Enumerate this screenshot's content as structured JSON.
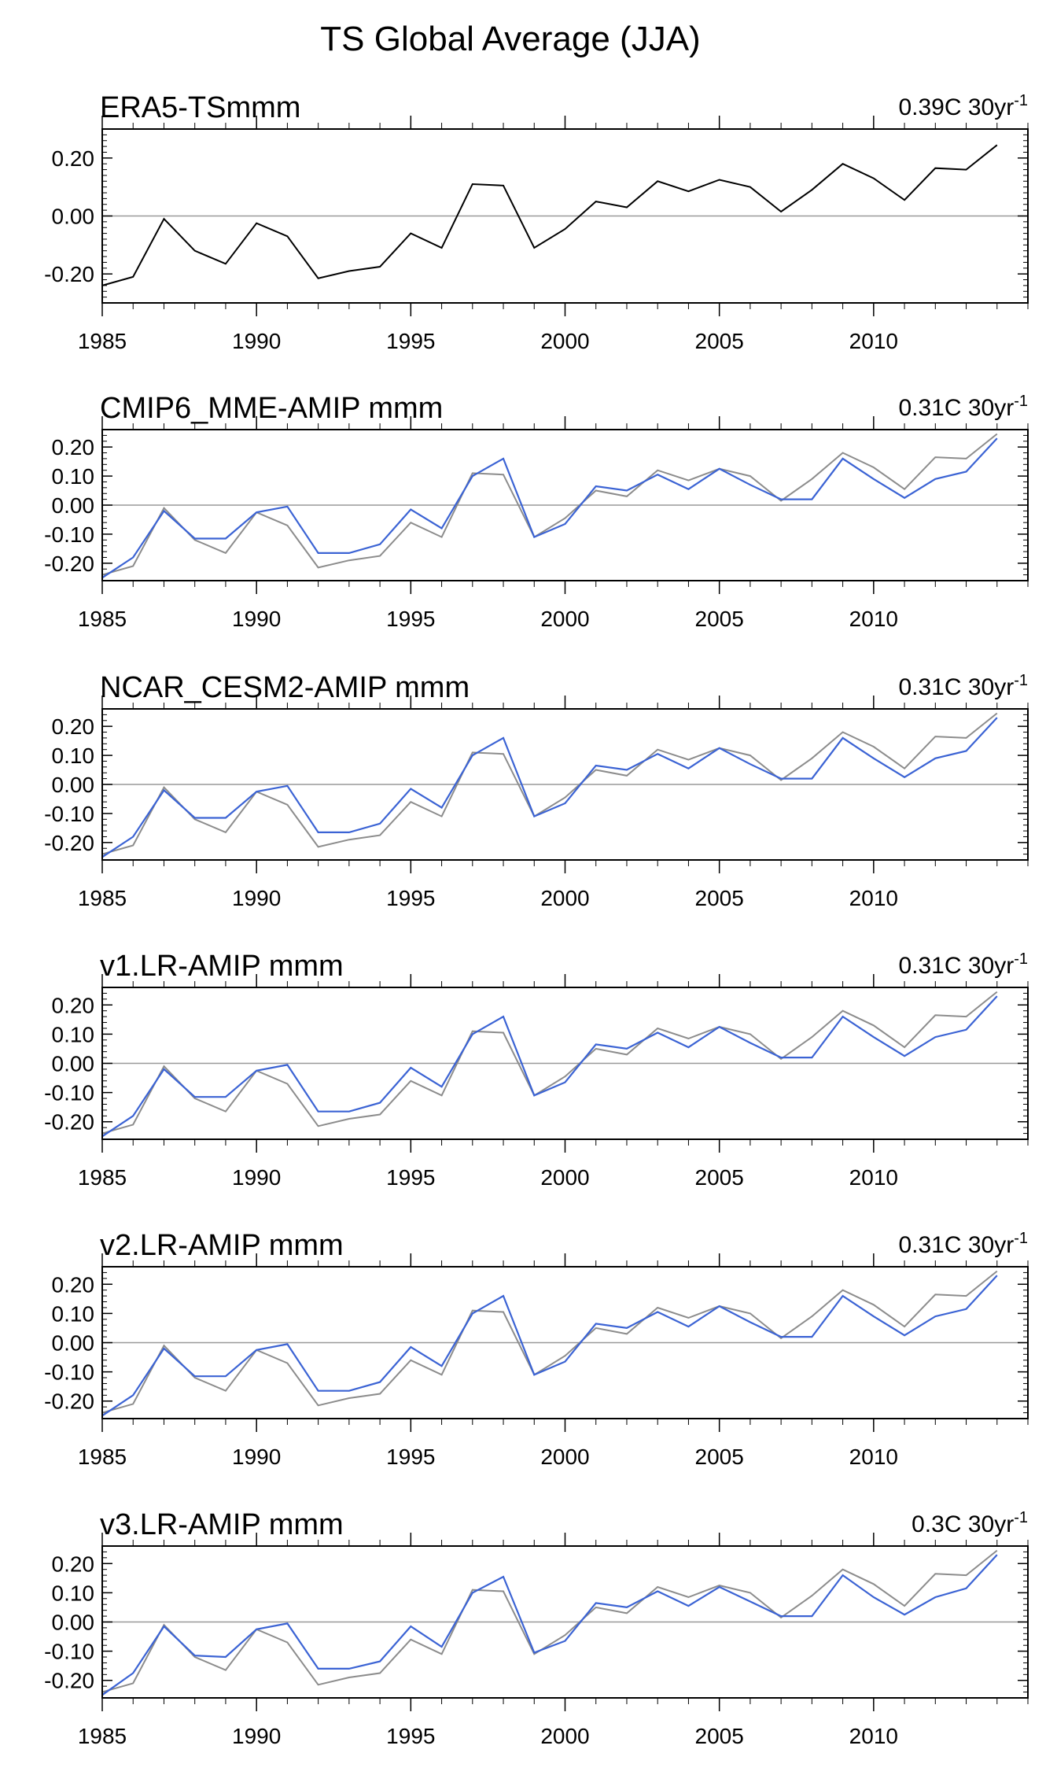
{
  "figure_title": "TS Global Average (JJA)",
  "colors": {
    "observation": "#000000",
    "reference": "#8c8c8c",
    "model": "#3b63d4",
    "zero_line": "#999999",
    "axis": "#000000"
  },
  "chart_data": [
    {
      "type": "line",
      "title": "ERA5-TSmmm",
      "trend_label": "0.39C 30yr",
      "trend_superscript": "-1",
      "x": [
        1985,
        1986,
        1987,
        1988,
        1989,
        1990,
        1991,
        1992,
        1993,
        1994,
        1995,
        1996,
        1997,
        1998,
        1999,
        2000,
        2001,
        2002,
        2003,
        2004,
        2005,
        2006,
        2007,
        2008,
        2009,
        2010,
        2011,
        2012,
        2013,
        2014
      ],
      "xlim": [
        1985,
        2015
      ],
      "xticks": [
        1985,
        1990,
        1995,
        2000,
        2005,
        2010
      ],
      "xtick_labels": [
        "1985",
        "1990",
        "1995",
        "2000",
        "2005",
        "2010"
      ],
      "ylim": [
        -0.3,
        0.3
      ],
      "yticks": [
        -0.2,
        0.0,
        0.2
      ],
      "ytick_labels": [
        "-0.20",
        "0.00",
        "0.20"
      ],
      "series": [
        {
          "name": "ERA5",
          "style": "observation",
          "values": [
            -0.24,
            -0.21,
            -0.01,
            -0.12,
            -0.165,
            -0.025,
            -0.07,
            -0.215,
            -0.19,
            -0.175,
            -0.06,
            -0.11,
            0.11,
            0.105,
            -0.11,
            -0.045,
            0.05,
            0.03,
            0.12,
            0.085,
            0.125,
            0.1,
            0.015,
            0.09,
            0.18,
            0.13,
            0.055,
            0.165,
            0.16,
            0.245
          ]
        }
      ]
    },
    {
      "type": "line",
      "title": "CMIP6_MME-AMIP  mmm",
      "trend_label": "0.31C 30yr",
      "trend_superscript": "-1",
      "x": [
        1985,
        1986,
        1987,
        1988,
        1989,
        1990,
        1991,
        1992,
        1993,
        1994,
        1995,
        1996,
        1997,
        1998,
        1999,
        2000,
        2001,
        2002,
        2003,
        2004,
        2005,
        2006,
        2007,
        2008,
        2009,
        2010,
        2011,
        2012,
        2013,
        2014
      ],
      "xlim": [
        1985,
        2015
      ],
      "xticks": [
        1985,
        1990,
        1995,
        2000,
        2005,
        2010
      ],
      "xtick_labels": [
        "1985",
        "1990",
        "1995",
        "2000",
        "2005",
        "2010"
      ],
      "ylim": [
        -0.26,
        0.26
      ],
      "yticks": [
        -0.2,
        -0.1,
        0.0,
        0.1,
        0.2
      ],
      "ytick_labels": [
        "-0.20",
        "-0.10",
        "0.00",
        "0.10",
        "0.20"
      ],
      "series": [
        {
          "name": "ERA5",
          "style": "reference",
          "values": [
            -0.24,
            -0.21,
            -0.01,
            -0.12,
            -0.165,
            -0.025,
            -0.07,
            -0.215,
            -0.19,
            -0.175,
            -0.06,
            -0.11,
            0.11,
            0.105,
            -0.11,
            -0.045,
            0.05,
            0.03,
            0.12,
            0.085,
            0.125,
            0.1,
            0.015,
            0.09,
            0.18,
            0.13,
            0.055,
            0.165,
            0.16,
            0.245
          ]
        },
        {
          "name": "CMIP6_MME-AMIP",
          "style": "model",
          "values": [
            -0.25,
            -0.18,
            -0.02,
            -0.115,
            -0.115,
            -0.025,
            -0.005,
            -0.165,
            -0.165,
            -0.135,
            -0.015,
            -0.08,
            0.1,
            0.16,
            -0.11,
            -0.065,
            0.065,
            0.05,
            0.105,
            0.055,
            0.125,
            0.07,
            0.02,
            0.02,
            0.16,
            0.09,
            0.025,
            0.09,
            0.115,
            0.23
          ]
        }
      ]
    },
    {
      "type": "line",
      "title": "NCAR_CESM2-AMIP  mmm",
      "trend_label": "0.31C 30yr",
      "trend_superscript": "-1",
      "x": [
        1985,
        1986,
        1987,
        1988,
        1989,
        1990,
        1991,
        1992,
        1993,
        1994,
        1995,
        1996,
        1997,
        1998,
        1999,
        2000,
        2001,
        2002,
        2003,
        2004,
        2005,
        2006,
        2007,
        2008,
        2009,
        2010,
        2011,
        2012,
        2013,
        2014
      ],
      "xlim": [
        1985,
        2015
      ],
      "xticks": [
        1985,
        1990,
        1995,
        2000,
        2005,
        2010
      ],
      "xtick_labels": [
        "1985",
        "1990",
        "1995",
        "2000",
        "2005",
        "2010"
      ],
      "ylim": [
        -0.26,
        0.26
      ],
      "yticks": [
        -0.2,
        -0.1,
        0.0,
        0.1,
        0.2
      ],
      "ytick_labels": [
        "-0.20",
        "-0.10",
        "0.00",
        "0.10",
        "0.20"
      ],
      "series": [
        {
          "name": "ERA5",
          "style": "reference",
          "values": [
            -0.24,
            -0.21,
            -0.01,
            -0.12,
            -0.165,
            -0.025,
            -0.07,
            -0.215,
            -0.19,
            -0.175,
            -0.06,
            -0.11,
            0.11,
            0.105,
            -0.11,
            -0.045,
            0.05,
            0.03,
            0.12,
            0.085,
            0.125,
            0.1,
            0.015,
            0.09,
            0.18,
            0.13,
            0.055,
            0.165,
            0.16,
            0.245
          ]
        },
        {
          "name": "NCAR_CESM2-AMIP",
          "style": "model",
          "values": [
            -0.25,
            -0.18,
            -0.02,
            -0.115,
            -0.115,
            -0.025,
            -0.005,
            -0.165,
            -0.165,
            -0.135,
            -0.015,
            -0.08,
            0.1,
            0.16,
            -0.11,
            -0.065,
            0.065,
            0.05,
            0.105,
            0.055,
            0.125,
            0.07,
            0.02,
            0.02,
            0.16,
            0.09,
            0.025,
            0.09,
            0.115,
            0.23
          ]
        }
      ]
    },
    {
      "type": "line",
      "title": "v1.LR-AMIP  mmm",
      "trend_label": "0.31C 30yr",
      "trend_superscript": "-1",
      "x": [
        1985,
        1986,
        1987,
        1988,
        1989,
        1990,
        1991,
        1992,
        1993,
        1994,
        1995,
        1996,
        1997,
        1998,
        1999,
        2000,
        2001,
        2002,
        2003,
        2004,
        2005,
        2006,
        2007,
        2008,
        2009,
        2010,
        2011,
        2012,
        2013,
        2014
      ],
      "xlim": [
        1985,
        2015
      ],
      "xticks": [
        1985,
        1990,
        1995,
        2000,
        2005,
        2010
      ],
      "xtick_labels": [
        "1985",
        "1990",
        "1995",
        "2000",
        "2005",
        "2010"
      ],
      "ylim": [
        -0.26,
        0.26
      ],
      "yticks": [
        -0.2,
        -0.1,
        0.0,
        0.1,
        0.2
      ],
      "ytick_labels": [
        "-0.20",
        "-0.10",
        "0.00",
        "0.10",
        "0.20"
      ],
      "series": [
        {
          "name": "ERA5",
          "style": "reference",
          "values": [
            -0.24,
            -0.21,
            -0.01,
            -0.12,
            -0.165,
            -0.025,
            -0.07,
            -0.215,
            -0.19,
            -0.175,
            -0.06,
            -0.11,
            0.11,
            0.105,
            -0.11,
            -0.045,
            0.05,
            0.03,
            0.12,
            0.085,
            0.125,
            0.1,
            0.015,
            0.09,
            0.18,
            0.13,
            0.055,
            0.165,
            0.16,
            0.245
          ]
        },
        {
          "name": "v1.LR-AMIP",
          "style": "model",
          "values": [
            -0.25,
            -0.18,
            -0.02,
            -0.115,
            -0.115,
            -0.025,
            -0.005,
            -0.165,
            -0.165,
            -0.135,
            -0.015,
            -0.08,
            0.1,
            0.16,
            -0.11,
            -0.065,
            0.065,
            0.05,
            0.105,
            0.055,
            0.125,
            0.07,
            0.02,
            0.02,
            0.16,
            0.09,
            0.025,
            0.09,
            0.115,
            0.23
          ]
        }
      ]
    },
    {
      "type": "line",
      "title": "v2.LR-AMIP  mmm",
      "trend_label": "0.31C 30yr",
      "trend_superscript": "-1",
      "x": [
        1985,
        1986,
        1987,
        1988,
        1989,
        1990,
        1991,
        1992,
        1993,
        1994,
        1995,
        1996,
        1997,
        1998,
        1999,
        2000,
        2001,
        2002,
        2003,
        2004,
        2005,
        2006,
        2007,
        2008,
        2009,
        2010,
        2011,
        2012,
        2013,
        2014
      ],
      "xlim": [
        1985,
        2015
      ],
      "xticks": [
        1985,
        1990,
        1995,
        2000,
        2005,
        2010
      ],
      "xtick_labels": [
        "1985",
        "1990",
        "1995",
        "2000",
        "2005",
        "2010"
      ],
      "ylim": [
        -0.26,
        0.26
      ],
      "yticks": [
        -0.2,
        -0.1,
        0.0,
        0.1,
        0.2
      ],
      "ytick_labels": [
        "-0.20",
        "-0.10",
        "0.00",
        "0.10",
        "0.20"
      ],
      "series": [
        {
          "name": "ERA5",
          "style": "reference",
          "values": [
            -0.24,
            -0.21,
            -0.01,
            -0.12,
            -0.165,
            -0.025,
            -0.07,
            -0.215,
            -0.19,
            -0.175,
            -0.06,
            -0.11,
            0.11,
            0.105,
            -0.11,
            -0.045,
            0.05,
            0.03,
            0.12,
            0.085,
            0.125,
            0.1,
            0.015,
            0.09,
            0.18,
            0.13,
            0.055,
            0.165,
            0.16,
            0.245
          ]
        },
        {
          "name": "v2.LR-AMIP",
          "style": "model",
          "values": [
            -0.25,
            -0.18,
            -0.02,
            -0.115,
            -0.115,
            -0.025,
            -0.005,
            -0.165,
            -0.165,
            -0.135,
            -0.015,
            -0.08,
            0.1,
            0.16,
            -0.11,
            -0.065,
            0.065,
            0.05,
            0.105,
            0.055,
            0.125,
            0.07,
            0.02,
            0.02,
            0.16,
            0.09,
            0.025,
            0.09,
            0.115,
            0.23
          ]
        }
      ]
    },
    {
      "type": "line",
      "title": "v3.LR-AMIP  mmm",
      "trend_label": "0.3C 30yr",
      "trend_superscript": "-1",
      "x": [
        1985,
        1986,
        1987,
        1988,
        1989,
        1990,
        1991,
        1992,
        1993,
        1994,
        1995,
        1996,
        1997,
        1998,
        1999,
        2000,
        2001,
        2002,
        2003,
        2004,
        2005,
        2006,
        2007,
        2008,
        2009,
        2010,
        2011,
        2012,
        2013,
        2014
      ],
      "xlim": [
        1985,
        2015
      ],
      "xticks": [
        1985,
        1990,
        1995,
        2000,
        2005,
        2010
      ],
      "xtick_labels": [
        "1985",
        "1990",
        "1995",
        "2000",
        "2005",
        "2010"
      ],
      "ylim": [
        -0.26,
        0.26
      ],
      "yticks": [
        -0.2,
        -0.1,
        0.0,
        0.1,
        0.2
      ],
      "ytick_labels": [
        "-0.20",
        "-0.10",
        "0.00",
        "0.10",
        "0.20"
      ],
      "series": [
        {
          "name": "ERA5",
          "style": "reference",
          "values": [
            -0.24,
            -0.21,
            -0.01,
            -0.12,
            -0.165,
            -0.025,
            -0.07,
            -0.215,
            -0.19,
            -0.175,
            -0.06,
            -0.11,
            0.11,
            0.105,
            -0.11,
            -0.045,
            0.05,
            0.03,
            0.12,
            0.085,
            0.125,
            0.1,
            0.015,
            0.09,
            0.18,
            0.13,
            0.055,
            0.165,
            0.16,
            0.245
          ]
        },
        {
          "name": "v3.LR-AMIP",
          "style": "model",
          "values": [
            -0.25,
            -0.175,
            -0.015,
            -0.115,
            -0.12,
            -0.025,
            -0.005,
            -0.16,
            -0.16,
            -0.135,
            -0.015,
            -0.085,
            0.1,
            0.155,
            -0.105,
            -0.065,
            0.065,
            0.05,
            0.105,
            0.055,
            0.12,
            0.07,
            0.02,
            0.02,
            0.16,
            0.085,
            0.025,
            0.085,
            0.115,
            0.23
          ]
        }
      ]
    }
  ]
}
